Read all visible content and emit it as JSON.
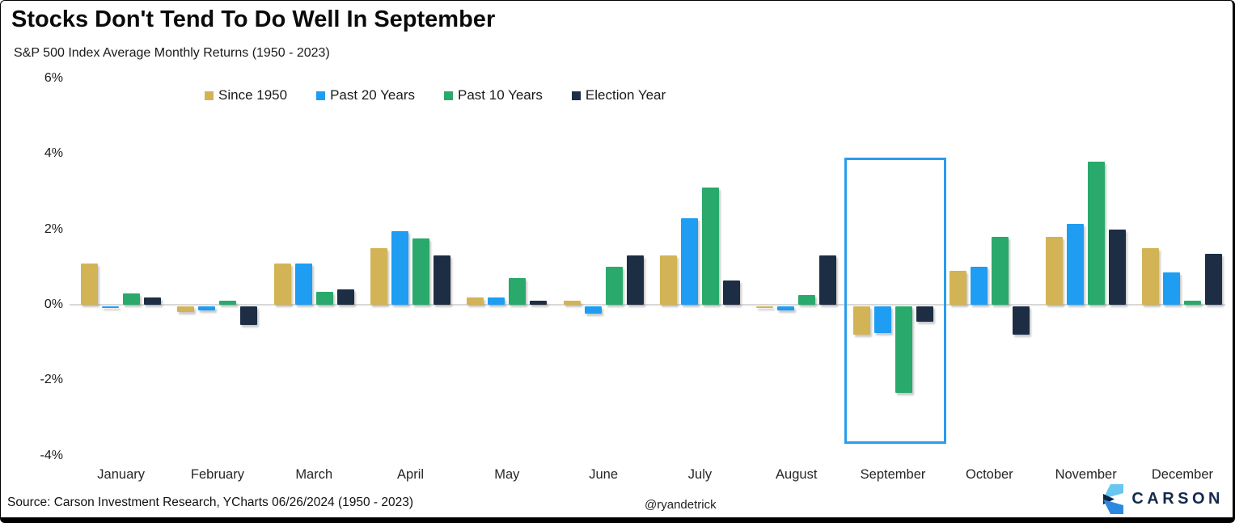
{
  "header": {
    "title": "Stocks Don't Tend To Do Well In September",
    "subtitle": "S&P 500 Index Average Monthly Returns (1950 - 2023)"
  },
  "chart_data": {
    "type": "bar",
    "title": "Stocks Don't Tend To Do Well In September",
    "subtitle": "S&P 500 Index Average Monthly Returns (1950 - 2023)",
    "categories": [
      "January",
      "February",
      "March",
      "April",
      "May",
      "June",
      "July",
      "August",
      "September",
      "October",
      "November",
      "December"
    ],
    "series": [
      {
        "name": "Since 1950",
        "color": "#D2B356",
        "values": [
          1.1,
          -0.15,
          1.1,
          1.5,
          0.2,
          0.1,
          1.3,
          -0.05,
          -0.75,
          0.9,
          1.8,
          1.5
        ]
      },
      {
        "name": "Past 20 Years",
        "color": "#1E9DF2",
        "values": [
          -0.05,
          -0.1,
          1.1,
          1.95,
          0.2,
          -0.2,
          2.3,
          -0.1,
          -0.7,
          1.0,
          2.15,
          0.85
        ]
      },
      {
        "name": "Past 10 Years",
        "color": "#29A96B",
        "values": [
          0.3,
          0.1,
          0.35,
          1.75,
          0.7,
          1.0,
          3.1,
          0.25,
          -2.3,
          1.8,
          3.8,
          0.1
        ]
      },
      {
        "name": "Election Year",
        "color": "#1D2D44",
        "values": [
          0.2,
          -0.5,
          0.4,
          1.3,
          0.1,
          1.3,
          0.65,
          1.3,
          -0.4,
          -0.75,
          2.0,
          1.35
        ]
      }
    ],
    "ylim": [
      -4,
      6
    ],
    "yticks": [
      6,
      4,
      2,
      0,
      -2,
      -4
    ],
    "ytick_suffix": "%",
    "xlabel": "",
    "ylabel": "",
    "grid": false,
    "legend_position": "top",
    "highlight": {
      "category": "September",
      "color": "#2B9CEC"
    }
  },
  "footer": {
    "source": "Source: Carson Investment Research, YCharts 06/26/2024 (1950 - 2023)",
    "handle": "@ryandetrick",
    "brand": "CARSON"
  }
}
